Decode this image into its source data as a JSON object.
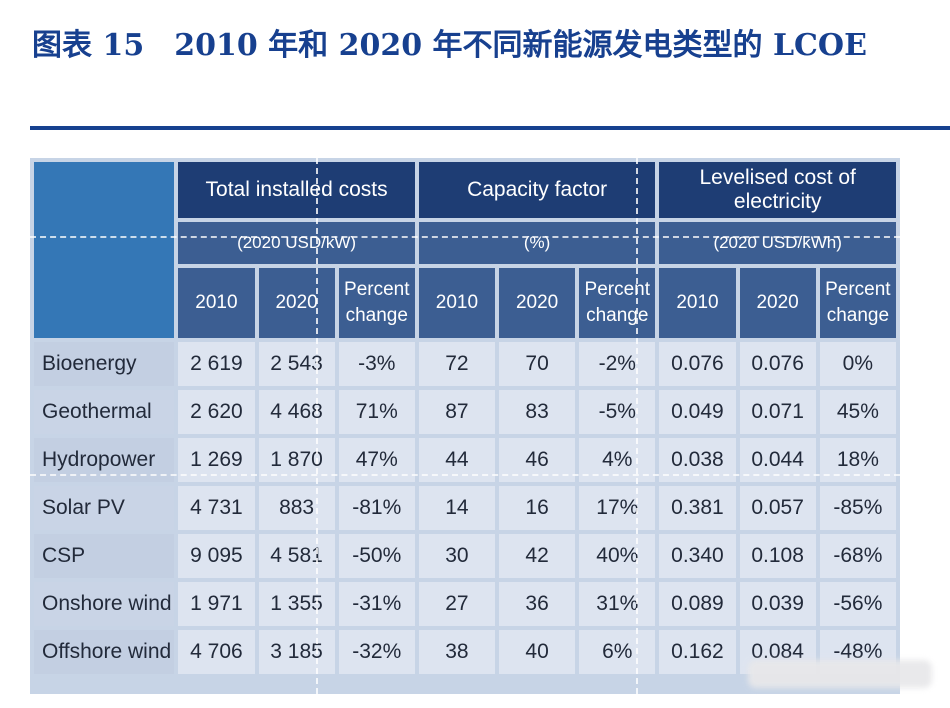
{
  "title": "图表 15　2010 年和 2020 年不同新能源发电类型的 LCOE",
  "table": {
    "groups": [
      {
        "label": "Total installed costs",
        "unit": "(2020 USD/kW)"
      },
      {
        "label": "Capacity factor",
        "unit": "(%)"
      },
      {
        "label": "Levelised cost of electricity",
        "unit": "(2020 USD/kWh)"
      }
    ],
    "subheaders": [
      "2010",
      "2020",
      "Percent change",
      "2010",
      "2020",
      "Percent change",
      "2010",
      "2020",
      "Percent change"
    ],
    "rows": [
      {
        "label": "Bioenergy",
        "values": [
          "2 619",
          "2 543",
          "-3%",
          "72",
          "70",
          "-2%",
          "0.076",
          "0.076",
          "0%"
        ]
      },
      {
        "label": "Geothermal",
        "values": [
          "2 620",
          "4 468",
          "71%",
          "87",
          "83",
          "-5%",
          "0.049",
          "0.071",
          "45%"
        ]
      },
      {
        "label": "Hydropower",
        "values": [
          "1 269",
          "1 870",
          "47%",
          "44",
          "46",
          "4%",
          "0.038",
          "0.044",
          "18%"
        ]
      },
      {
        "label": "Solar PV",
        "values": [
          "4 731",
          "883",
          "-81%",
          "14",
          "16",
          "17%",
          "0.381",
          "0.057",
          "-85%"
        ]
      },
      {
        "label": "CSP",
        "values": [
          "9 095",
          "4 581",
          "-50%",
          "30",
          "42",
          "40%",
          "0.340",
          "0.108",
          "-68%"
        ]
      },
      {
        "label": "Onshore wind",
        "values": [
          "1 971",
          "1 355",
          "-31%",
          "27",
          "36",
          "31%",
          "0.089",
          "0.039",
          "-56%"
        ]
      },
      {
        "label": "Offshore wind",
        "values": [
          "4 706",
          "3 185",
          "-32%",
          "38",
          "40",
          "6%",
          "0.162",
          "0.084",
          "-48%"
        ]
      }
    ]
  }
}
